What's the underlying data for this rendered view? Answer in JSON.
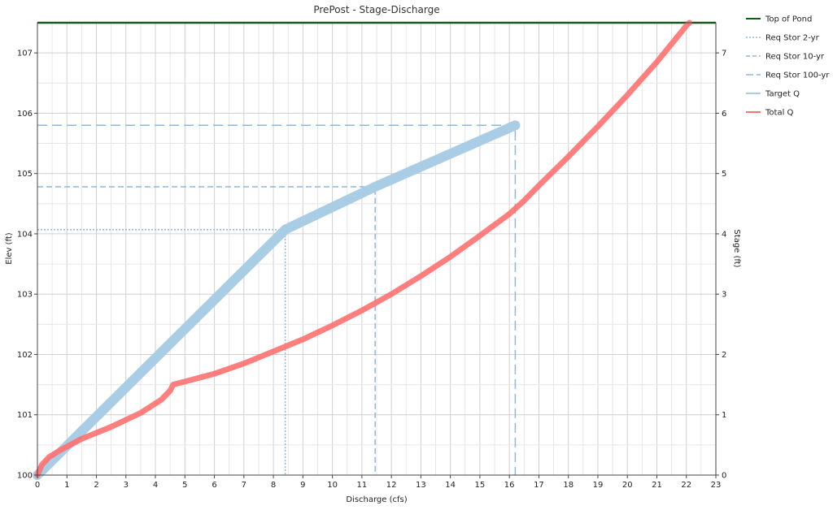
{
  "chart_data": {
    "type": "line",
    "title": "PrePost - Stage-Discharge",
    "xlabel": "Discharge (cfs)",
    "ylabel": "Elev (ft)",
    "y2label": "Stage (ft)",
    "xlim": [
      0,
      23
    ],
    "ylim": [
      100,
      107.5
    ],
    "y2lim": [
      0,
      7.5
    ],
    "xticks": [
      0,
      1,
      2,
      3,
      4,
      5,
      6,
      7,
      8,
      9,
      10,
      11,
      12,
      13,
      14,
      15,
      16,
      17,
      18,
      19,
      20,
      21,
      22,
      23
    ],
    "yticks": [
      100,
      101,
      102,
      103,
      104,
      105,
      106,
      107
    ],
    "y2ticks": [
      0,
      1,
      2,
      3,
      4,
      5,
      6,
      7
    ],
    "grid": true,
    "legend_position": "right",
    "legend": [
      {
        "label": "Top of Pond",
        "color": "#006400",
        "style": "solid",
        "width": 2
      },
      {
        "label": "Req Stor 2-yr",
        "color": "#8fb8d8",
        "style": "dotted",
        "width": 1.5
      },
      {
        "label": "Req Stor 10-yr",
        "color": "#8fb8d8",
        "style": "dashed",
        "width": 1.5
      },
      {
        "label": "Req Stor 100-yr",
        "color": "#8fb8d8",
        "style": "longdash",
        "width": 1.5
      },
      {
        "label": "Target Q",
        "color": "#a9cde5",
        "style": "solid",
        "width": 2
      },
      {
        "label": "Total Q",
        "color": "#ff7070",
        "style": "solid",
        "width": 2
      }
    ],
    "series": [
      {
        "name": "Top of Pond",
        "color": "#006400",
        "width": 2.5,
        "dash": "none",
        "points": [
          [
            0,
            107.5
          ],
          [
            23,
            107.5
          ]
        ]
      },
      {
        "name": "Req Stor 2-yr",
        "color": "#8fb8d8",
        "width": 1.5,
        "dash": "2,2",
        "points": [
          [
            0,
            104.07
          ],
          [
            8.4,
            104.07
          ],
          [
            8.4,
            100
          ]
        ]
      },
      {
        "name": "Req Stor 10-yr",
        "color": "#8fb8d8",
        "width": 1.5,
        "dash": "7,4",
        "points": [
          [
            0,
            104.78
          ],
          [
            11.45,
            104.78
          ],
          [
            11.45,
            100
          ]
        ]
      },
      {
        "name": "Req Stor 100-yr",
        "color": "#8fb8d8",
        "width": 1.5,
        "dash": "12,6",
        "points": [
          [
            0,
            105.8
          ],
          [
            16.2,
            105.8
          ],
          [
            16.2,
            100
          ]
        ]
      },
      {
        "name": "Target Q",
        "color": "#a9cde5",
        "width": 12,
        "dash": "none",
        "points": [
          [
            0,
            100
          ],
          [
            8.4,
            104.07
          ],
          [
            11.45,
            104.78
          ],
          [
            16.2,
            105.8
          ]
        ]
      },
      {
        "name": "Total Q",
        "color": "#ff7070",
        "width": 7,
        "dash": "none",
        "points": [
          [
            0,
            100
          ],
          [
            0.15,
            100.17
          ],
          [
            0.4,
            100.3
          ],
          [
            0.8,
            100.42
          ],
          [
            1.5,
            100.6
          ],
          [
            2.5,
            100.8
          ],
          [
            3.5,
            101.03
          ],
          [
            4.2,
            101.25
          ],
          [
            4.5,
            101.4
          ],
          [
            4.6,
            101.5
          ],
          [
            5,
            101.55
          ],
          [
            6,
            101.68
          ],
          [
            7,
            101.85
          ],
          [
            8,
            102.05
          ],
          [
            9,
            102.25
          ],
          [
            10,
            102.48
          ],
          [
            11,
            102.73
          ],
          [
            12,
            103.0
          ],
          [
            13,
            103.3
          ],
          [
            14,
            103.62
          ],
          [
            15,
            103.97
          ],
          [
            16,
            104.33
          ],
          [
            16.5,
            104.55
          ],
          [
            17,
            104.8
          ],
          [
            18,
            105.28
          ],
          [
            19,
            105.78
          ],
          [
            20,
            106.3
          ],
          [
            21,
            106.85
          ],
          [
            22,
            107.45
          ],
          [
            22.1,
            107.5
          ]
        ]
      }
    ]
  }
}
